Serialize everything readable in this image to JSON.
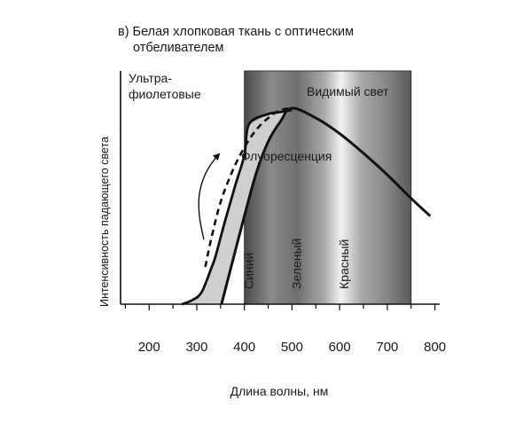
{
  "chart_data": {
    "type": "line",
    "title_line1": "в) Белая хлопковая ткань с оптическим",
    "title_line2": "отбеливателем",
    "xlabel": "Длина волны, нм",
    "ylabel": "Интенсивность падающего света",
    "x_ticks": [
      200,
      300,
      400,
      500,
      600,
      700,
      800
    ],
    "xlim": [
      140,
      810
    ],
    "region_labels": {
      "uv_line1": "Ультра-",
      "uv_line2": "фиолетовые",
      "visible": "Видимый свет",
      "fluorescence": "Флуоресценция"
    },
    "visible_region": [
      400,
      750
    ],
    "color_bands": [
      {
        "label": "Синий",
        "x": 450
      },
      {
        "label": "Зеленый",
        "x": 550
      },
      {
        "label": "Красный",
        "x": 650
      }
    ],
    "series": [
      {
        "style": "dashed",
        "x": [
          318,
          330,
          350,
          375,
          400,
          425,
          450,
          475,
          500
        ],
        "y": [
          0.19,
          0.33,
          0.52,
          0.68,
          0.8,
          0.89,
          0.95,
          0.99,
          1.0
        ]
      },
      {
        "style": "solid",
        "x": [
          352,
          370,
          400,
          425,
          450,
          475,
          500,
          550,
          600,
          650,
          700,
          750,
          790
        ],
        "y": [
          0.0,
          0.17,
          0.45,
          0.67,
          0.83,
          0.93,
          1.0,
          0.95,
          0.87,
          0.77,
          0.66,
          0.54,
          0.45
        ]
      },
      {
        "style": "solid",
        "x": [
          269,
          290,
          310,
          330,
          340,
          360,
          380,
          400,
          410,
          450,
          475,
          500
        ],
        "y": [
          0.0,
          0.02,
          0.06,
          0.18,
          0.25,
          0.43,
          0.6,
          0.76,
          0.92,
          0.97,
          0.98,
          0.99
        ]
      }
    ],
    "shaded_region_label": "",
    "colors": {
      "curve": "#111111",
      "shaded_fill": "#cfcfcf",
      "visible_dark": "#4a4a4a",
      "visible_light": "#eeeeee"
    }
  }
}
